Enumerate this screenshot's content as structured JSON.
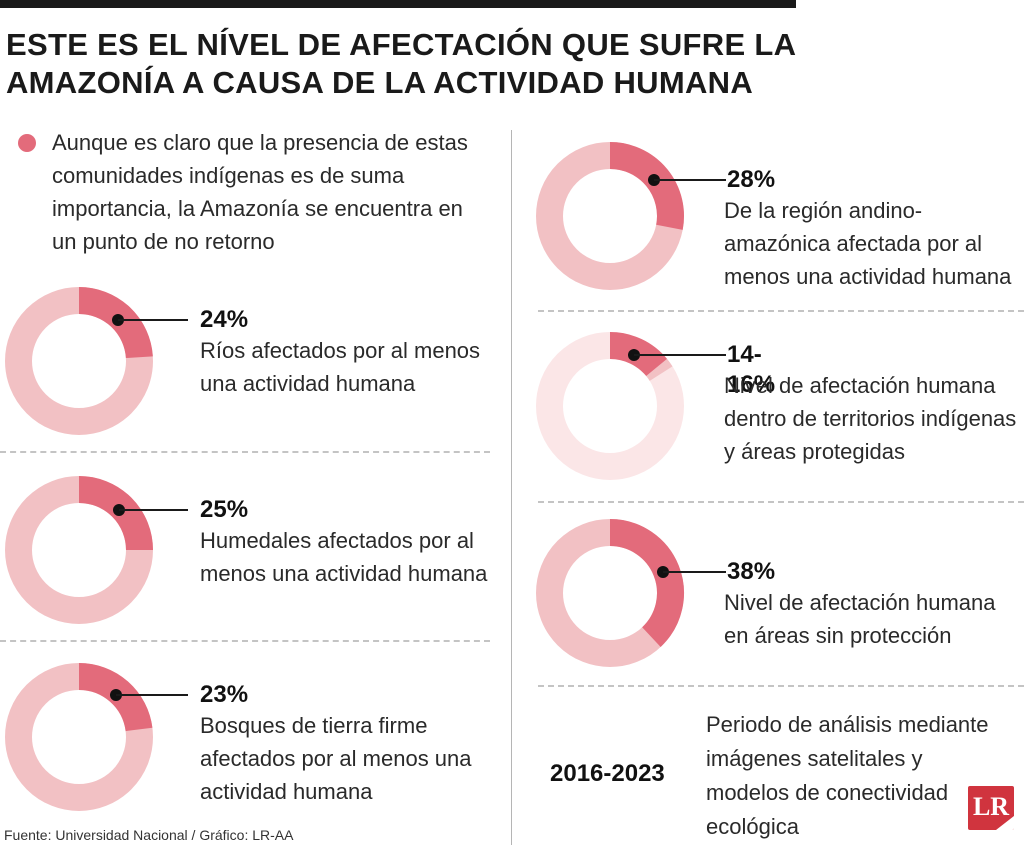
{
  "headline": {
    "line1": "ESTE ES EL NÍVEL DE AFECTACIÓN QUE SUFRE LA",
    "line2": "AMAZONÍA A CAUSA DE LA ACTIVIDAD HUMANA"
  },
  "intro": {
    "text": "Aunque es claro que la presencia de estas comunidades indígenas es de suma importancia, la Amazonía se encuentra en un punto de no retorno"
  },
  "colors": {
    "highlight": "#e36b7b",
    "ring": "#f2c1c4",
    "ring_light": "#fbe6e7",
    "logo": "#d0343e"
  },
  "chart_data": {
    "type": "pie",
    "title": "",
    "items": [
      {
        "value_label": "24%",
        "value": 24,
        "description": "Ríos afectados por al menos una actividad humana"
      },
      {
        "value_label": "25%",
        "value": 25,
        "description": "Humedales afectados por al menos una actividad humana"
      },
      {
        "value_label": "23%",
        "value": 23,
        "description": "Bosques de tierra firme afectados por al menos una actividad humana"
      },
      {
        "value_label": "28%",
        "value": 28,
        "description": "De la región andino-amazónica afectada por al menos una actividad humana"
      },
      {
        "value_label": "14-16%",
        "value_range": [
          14,
          16
        ],
        "description": "Nivel de afectación humana dentro de territorios indígenas y áreas protegidas"
      },
      {
        "value_label": "38%",
        "value": 38,
        "description": "Nivel de afectación humana en áreas sin protección"
      }
    ]
  },
  "period": {
    "years": "2016-2023",
    "text": "Periodo de análisis mediante imágenes satelitales y modelos de conectividad ecológica"
  },
  "source": "Fuente: Universidad Nacional / Gráfico: LR-AA",
  "logo": {
    "text": "LR"
  }
}
